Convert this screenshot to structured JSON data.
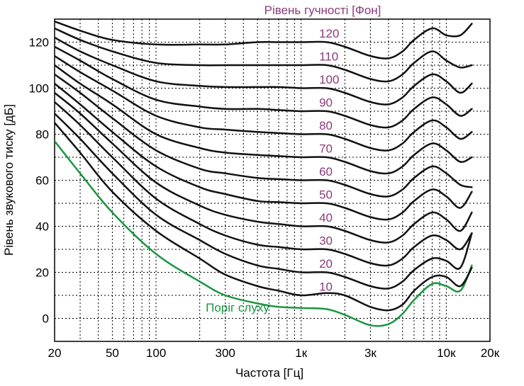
{
  "chart_data": {
    "type": "line",
    "title": "Рівень гучності [Фон]",
    "xlabel": "Частота [Гц]",
    "ylabel": "Рівень звукового тиску [дБ]",
    "x_scale": "log",
    "xlim": [
      20,
      20000
    ],
    "ylim": [
      -10,
      130
    ],
    "grid": true,
    "x_ticks": [
      {
        "value": 20,
        "label": "20"
      },
      {
        "value": 50,
        "label": "50"
      },
      {
        "value": 100,
        "label": "100"
      },
      {
        "value": 300,
        "label": "300"
      },
      {
        "value": 1000,
        "label": "1к"
      },
      {
        "value": 3000,
        "label": "3к"
      },
      {
        "value": 10000,
        "label": "10к"
      },
      {
        "value": 20000,
        "label": "20к"
      }
    ],
    "y_ticks": [
      0,
      20,
      40,
      60,
      80,
      100,
      120
    ],
    "x": [
      20,
      30,
      50,
      100,
      200,
      300,
      500,
      700,
      1000,
      1500,
      2000,
      3000,
      4000,
      5000,
      6000,
      8000,
      10000,
      12500,
      15000
    ],
    "series": [
      {
        "name": "Поріг слуху",
        "values": [
          77,
          63,
          46,
          28,
          16,
          10,
          6.5,
          5,
          4.5,
          4,
          1.5,
          -3,
          -2.5,
          2,
          8,
          15,
          14,
          12,
          23
        ],
        "color": "#1a9641",
        "label_position": [
          220,
          3
        ]
      },
      {
        "name": "10",
        "values": [
          85,
          72,
          55,
          38,
          26,
          19,
          14,
          12,
          10,
          11,
          10,
          5,
          3.5,
          6,
          12,
          18,
          18,
          14,
          22
        ],
        "label_position": [
          1330,
          12
        ]
      },
      {
        "name": "20",
        "values": [
          89,
          78,
          63,
          45,
          34,
          28,
          23,
          21.5,
          20,
          20,
          18,
          14,
          13,
          16,
          21,
          26,
          25,
          22,
          37
        ],
        "label_position": [
          1330,
          22
        ]
      },
      {
        "name": "30",
        "values": [
          94,
          84,
          70,
          52,
          41,
          36,
          32,
          31,
          30,
          30,
          28,
          24,
          23,
          26,
          31,
          36,
          34,
          30,
          37
        ],
        "label_position": [
          1330,
          32
        ]
      },
      {
        "name": "40",
        "values": [
          98,
          89,
          76,
          59,
          49,
          45,
          42,
          41,
          40,
          40,
          38,
          34,
          33,
          36,
          41,
          46,
          43,
          38,
          46
        ],
        "label_position": [
          1330,
          42
        ]
      },
      {
        "name": "50",
        "values": [
          102,
          93,
          81,
          66,
          57,
          54,
          51,
          50.5,
          50,
          50,
          48,
          44,
          43,
          46,
          51,
          56,
          53,
          48,
          55
        ],
        "label_position": [
          1330,
          52
        ]
      },
      {
        "name": "60",
        "values": [
          106,
          98,
          87,
          73,
          65,
          63,
          61,
          60.5,
          60,
          60,
          58,
          54,
          53,
          56,
          61,
          66,
          63,
          58,
          57
        ],
        "label_position": [
          1330,
          62
        ]
      },
      {
        "name": "70",
        "values": [
          110,
          102,
          93,
          80,
          74,
          72,
          71,
          70.5,
          70,
          70,
          68,
          64,
          63,
          66,
          71,
          76,
          73,
          68,
          70
        ],
        "label_position": [
          1330,
          72
        ]
      },
      {
        "name": "80",
        "values": [
          114,
          107,
          99,
          88,
          83,
          82,
          81,
          80.5,
          80,
          80,
          78,
          74,
          73,
          76,
          81,
          86,
          83,
          78,
          81
        ],
        "label_position": [
          1330,
          82
        ]
      },
      {
        "name": "90",
        "values": [
          118,
          112,
          104,
          95,
          92,
          91,
          91,
          90.5,
          90,
          90,
          88,
          84,
          83,
          86,
          91,
          96,
          93,
          88,
          91
        ],
        "label_position": [
          1330,
          92
        ]
      },
      {
        "name": "100",
        "values": [
          122,
          116,
          110,
          103,
          101,
          100.5,
          100.5,
          100.5,
          100,
          100,
          98,
          94,
          93,
          96,
          101,
          106,
          103,
          98,
          102
        ],
        "label_position": [
          1330,
          102
        ]
      },
      {
        "name": "110",
        "values": [
          126,
          121,
          116,
          111,
          110,
          110,
          110,
          110,
          110,
          110,
          108,
          104,
          103,
          106,
          111,
          116,
          112,
          109,
          110
        ],
        "label_position": [
          1330,
          112
        ]
      },
      {
        "name": "120",
        "values": [
          129,
          125,
          121,
          119,
          119,
          119,
          120,
          120,
          120,
          120,
          118,
          114,
          113,
          116,
          121,
          126,
          123,
          123,
          128
        ],
        "label_position": [
          1330,
          122
        ]
      }
    ],
    "label_color": "#8b3a7b"
  }
}
